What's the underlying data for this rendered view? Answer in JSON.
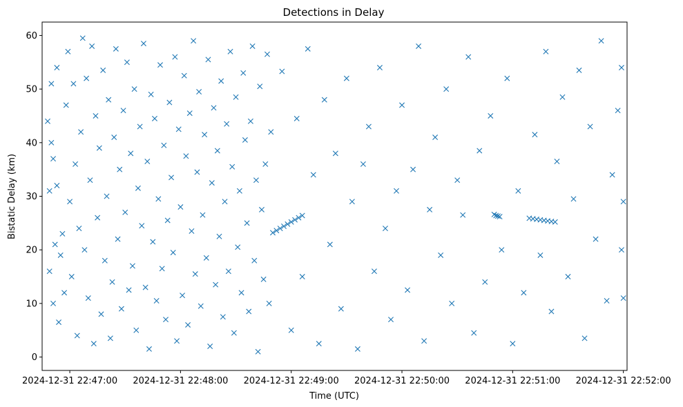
{
  "chart_data": {
    "type": "scatter",
    "title": "Detections in Delay",
    "xlabel": "Time (UTC)",
    "ylabel": "Bistatic Delay (km)",
    "x_axis_kind": "datetime",
    "xlim": [
      "2024-12-31 22:46:45",
      "2024-12-31 22:52:02"
    ],
    "ylim": [
      -2.5,
      62.5
    ],
    "x_ticks": [
      "2024-12-31 22:47:00",
      "2024-12-31 22:48:00",
      "2024-12-31 22:49:00",
      "2024-12-31 22:50:00",
      "2024-12-31 22:51:00",
      "2024-12-31 22:52:00"
    ],
    "y_ticks": [
      0,
      10,
      20,
      30,
      40,
      50,
      60
    ],
    "grid": false,
    "legend": "none",
    "marker": "x",
    "color": "#1f77b4",
    "series": [
      {
        "points": [
          [
            "2024-12-31 22:46:48",
            44
          ],
          [
            "2024-12-31 22:46:49",
            31
          ],
          [
            "2024-12-31 22:46:49",
            16
          ],
          [
            "2024-12-31 22:46:50",
            40
          ],
          [
            "2024-12-31 22:46:50",
            51
          ],
          [
            "2024-12-31 22:46:51",
            10
          ],
          [
            "2024-12-31 22:46:51",
            37
          ],
          [
            "2024-12-31 22:46:52",
            21
          ],
          [
            "2024-12-31 22:46:53",
            54
          ],
          [
            "2024-12-31 22:46:53",
            32
          ],
          [
            "2024-12-31 22:46:54",
            6.5
          ],
          [
            "2024-12-31 22:46:55",
            19
          ],
          [
            "2024-12-31 22:46:56",
            23
          ],
          [
            "2024-12-31 22:46:57",
            12
          ],
          [
            "2024-12-31 22:46:58",
            47
          ],
          [
            "2024-12-31 22:46:59",
            57
          ],
          [
            "2024-12-31 22:47:00",
            29
          ],
          [
            "2024-12-31 22:47:01",
            15
          ],
          [
            "2024-12-31 22:47:02",
            51
          ],
          [
            "2024-12-31 22:47:03",
            36
          ],
          [
            "2024-12-31 22:47:04",
            4
          ],
          [
            "2024-12-31 22:47:05",
            24
          ],
          [
            "2024-12-31 22:47:06",
            42
          ],
          [
            "2024-12-31 22:47:07",
            59.5
          ],
          [
            "2024-12-31 22:47:08",
            20
          ],
          [
            "2024-12-31 22:47:09",
            52
          ],
          [
            "2024-12-31 22:47:10",
            11
          ],
          [
            "2024-12-31 22:47:11",
            33
          ],
          [
            "2024-12-31 22:47:12",
            58
          ],
          [
            "2024-12-31 22:47:13",
            2.5
          ],
          [
            "2024-12-31 22:47:14",
            45
          ],
          [
            "2024-12-31 22:47:15",
            26
          ],
          [
            "2024-12-31 22:47:16",
            39
          ],
          [
            "2024-12-31 22:47:17",
            8
          ],
          [
            "2024-12-31 22:47:18",
            53.5
          ],
          [
            "2024-12-31 22:47:19",
            18
          ],
          [
            "2024-12-31 22:47:20",
            30
          ],
          [
            "2024-12-31 22:47:21",
            48
          ],
          [
            "2024-12-31 22:47:22",
            3.5
          ],
          [
            "2024-12-31 22:47:23",
            14
          ],
          [
            "2024-12-31 22:47:24",
            41
          ],
          [
            "2024-12-31 22:47:25",
            57.5
          ],
          [
            "2024-12-31 22:47:26",
            22
          ],
          [
            "2024-12-31 22:47:27",
            35
          ],
          [
            "2024-12-31 22:47:28",
            9
          ],
          [
            "2024-12-31 22:47:29",
            46
          ],
          [
            "2024-12-31 22:47:30",
            27
          ],
          [
            "2024-12-31 22:47:31",
            55
          ],
          [
            "2024-12-31 22:47:32",
            12.5
          ],
          [
            "2024-12-31 22:47:33",
            38
          ],
          [
            "2024-12-31 22:47:34",
            17
          ],
          [
            "2024-12-31 22:47:35",
            50
          ],
          [
            "2024-12-31 22:47:36",
            5
          ],
          [
            "2024-12-31 22:47:37",
            31.5
          ],
          [
            "2024-12-31 22:47:38",
            43
          ],
          [
            "2024-12-31 22:47:39",
            24.5
          ],
          [
            "2024-12-31 22:47:40",
            58.5
          ],
          [
            "2024-12-31 22:47:41",
            13
          ],
          [
            "2024-12-31 22:47:42",
            36.5
          ],
          [
            "2024-12-31 22:47:43",
            1.5
          ],
          [
            "2024-12-31 22:47:44",
            49
          ],
          [
            "2024-12-31 22:47:45",
            21.5
          ],
          [
            "2024-12-31 22:47:46",
            44.5
          ],
          [
            "2024-12-31 22:47:47",
            10.5
          ],
          [
            "2024-12-31 22:47:48",
            29.5
          ],
          [
            "2024-12-31 22:47:49",
            54.5
          ],
          [
            "2024-12-31 22:47:50",
            16.5
          ],
          [
            "2024-12-31 22:47:51",
            39.5
          ],
          [
            "2024-12-31 22:47:52",
            7
          ],
          [
            "2024-12-31 22:47:53",
            25.5
          ],
          [
            "2024-12-31 22:47:54",
            47.5
          ],
          [
            "2024-12-31 22:47:55",
            33.5
          ],
          [
            "2024-12-31 22:47:56",
            19.5
          ],
          [
            "2024-12-31 22:47:57",
            56
          ],
          [
            "2024-12-31 22:47:58",
            3
          ],
          [
            "2024-12-31 22:47:59",
            42.5
          ],
          [
            "2024-12-31 22:48:00",
            28
          ],
          [
            "2024-12-31 22:48:01",
            11.5
          ],
          [
            "2024-12-31 22:48:02",
            52.5
          ],
          [
            "2024-12-31 22:48:03",
            37.5
          ],
          [
            "2024-12-31 22:48:04",
            6
          ],
          [
            "2024-12-31 22:48:05",
            45.5
          ],
          [
            "2024-12-31 22:48:06",
            23.5
          ],
          [
            "2024-12-31 22:48:07",
            59
          ],
          [
            "2024-12-31 22:48:08",
            15.5
          ],
          [
            "2024-12-31 22:48:09",
            34.5
          ],
          [
            "2024-12-31 22:48:10",
            49.5
          ],
          [
            "2024-12-31 22:48:11",
            9.5
          ],
          [
            "2024-12-31 22:48:12",
            26.5
          ],
          [
            "2024-12-31 22:48:13",
            41.5
          ],
          [
            "2024-12-31 22:48:14",
            18.5
          ],
          [
            "2024-12-31 22:48:15",
            55.5
          ],
          [
            "2024-12-31 22:48:16",
            2
          ],
          [
            "2024-12-31 22:48:17",
            32.5
          ],
          [
            "2024-12-31 22:48:18",
            46.5
          ],
          [
            "2024-12-31 22:48:19",
            13.5
          ],
          [
            "2024-12-31 22:48:20",
            38.5
          ],
          [
            "2024-12-31 22:48:21",
            22.5
          ],
          [
            "2024-12-31 22:48:22",
            51.5
          ],
          [
            "2024-12-31 22:48:23",
            7.5
          ],
          [
            "2024-12-31 22:48:24",
            29
          ],
          [
            "2024-12-31 22:48:25",
            43.5
          ],
          [
            "2024-12-31 22:48:26",
            16
          ],
          [
            "2024-12-31 22:48:27",
            57
          ],
          [
            "2024-12-31 22:48:28",
            35.5
          ],
          [
            "2024-12-31 22:48:29",
            4.5
          ],
          [
            "2024-12-31 22:48:30",
            48.5
          ],
          [
            "2024-12-31 22:48:31",
            20.5
          ],
          [
            "2024-12-31 22:48:32",
            31
          ],
          [
            "2024-12-31 22:48:33",
            12
          ],
          [
            "2024-12-31 22:48:34",
            53
          ],
          [
            "2024-12-31 22:48:35",
            40.5
          ],
          [
            "2024-12-31 22:48:36",
            25
          ],
          [
            "2024-12-31 22:48:37",
            8.5
          ],
          [
            "2024-12-31 22:48:38",
            44
          ],
          [
            "2024-12-31 22:48:39",
            58
          ],
          [
            "2024-12-31 22:48:40",
            18
          ],
          [
            "2024-12-31 22:48:41",
            33
          ],
          [
            "2024-12-31 22:48:42",
            1
          ],
          [
            "2024-12-31 22:48:43",
            50.5
          ],
          [
            "2024-12-31 22:48:44",
            27.5
          ],
          [
            "2024-12-31 22:48:45",
            14.5
          ],
          [
            "2024-12-31 22:48:46",
            36
          ],
          [
            "2024-12-31 22:48:47",
            56.5
          ],
          [
            "2024-12-31 22:48:48",
            10
          ],
          [
            "2024-12-31 22:48:49",
            42
          ],
          [
            "2024-12-31 22:48:50",
            23.2
          ],
          [
            "2024-12-31 22:48:52",
            23.6
          ],
          [
            "2024-12-31 22:48:54",
            24
          ],
          [
            "2024-12-31 22:48:56",
            24.4
          ],
          [
            "2024-12-31 22:48:58",
            24.8
          ],
          [
            "2024-12-31 22:49:00",
            25.2
          ],
          [
            "2024-12-31 22:49:02",
            25.6
          ],
          [
            "2024-12-31 22:49:04",
            26
          ],
          [
            "2024-12-31 22:49:06",
            26.4
          ],
          [
            "2024-12-31 22:48:55",
            53.3
          ],
          [
            "2024-12-31 22:49:00",
            5
          ],
          [
            "2024-12-31 22:49:03",
            44.5
          ],
          [
            "2024-12-31 22:49:06",
            15
          ],
          [
            "2024-12-31 22:49:09",
            57.5
          ],
          [
            "2024-12-31 22:49:12",
            34
          ],
          [
            "2024-12-31 22:49:15",
            2.5
          ],
          [
            "2024-12-31 22:49:18",
            48
          ],
          [
            "2024-12-31 22:49:21",
            21
          ],
          [
            "2024-12-31 22:49:24",
            38
          ],
          [
            "2024-12-31 22:49:27",
            9
          ],
          [
            "2024-12-31 22:49:30",
            52
          ],
          [
            "2024-12-31 22:49:33",
            29
          ],
          [
            "2024-12-31 22:49:36",
            1.5
          ],
          [
            "2024-12-31 22:49:39",
            36
          ],
          [
            "2024-12-31 22:49:42",
            43
          ],
          [
            "2024-12-31 22:49:45",
            16
          ],
          [
            "2024-12-31 22:49:48",
            54
          ],
          [
            "2024-12-31 22:49:51",
            24
          ],
          [
            "2024-12-31 22:49:54",
            7
          ],
          [
            "2024-12-31 22:49:57",
            31
          ],
          [
            "2024-12-31 22:50:00",
            47
          ],
          [
            "2024-12-31 22:50:03",
            12.5
          ],
          [
            "2024-12-31 22:50:06",
            35
          ],
          [
            "2024-12-31 22:50:09",
            58
          ],
          [
            "2024-12-31 22:50:12",
            3
          ],
          [
            "2024-12-31 22:50:15",
            27.5
          ],
          [
            "2024-12-31 22:50:18",
            41
          ],
          [
            "2024-12-31 22:50:21",
            19
          ],
          [
            "2024-12-31 22:50:24",
            50
          ],
          [
            "2024-12-31 22:50:27",
            10
          ],
          [
            "2024-12-31 22:50:30",
            33
          ],
          [
            "2024-12-31 22:50:33",
            26.5
          ],
          [
            "2024-12-31 22:50:36",
            56
          ],
          [
            "2024-12-31 22:50:39",
            4.5
          ],
          [
            "2024-12-31 22:50:42",
            38.5
          ],
          [
            "2024-12-31 22:50:45",
            14
          ],
          [
            "2024-12-31 22:50:48",
            45
          ],
          [
            "2024-12-31 22:50:50",
            26.6
          ],
          [
            "2024-12-31 22:50:51",
            26.4
          ],
          [
            "2024-12-31 22:50:52",
            26.3
          ],
          [
            "2024-12-31 22:50:53",
            26.2
          ],
          [
            "2024-12-31 22:50:54",
            20
          ],
          [
            "2024-12-31 22:50:57",
            52
          ],
          [
            "2024-12-31 22:51:00",
            2.5
          ],
          [
            "2024-12-31 22:51:03",
            31
          ],
          [
            "2024-12-31 22:51:06",
            12
          ],
          [
            "2024-12-31 22:51:09",
            25.9
          ],
          [
            "2024-12-31 22:51:11",
            25.8
          ],
          [
            "2024-12-31 22:51:13",
            25.7
          ],
          [
            "2024-12-31 22:51:15",
            25.6
          ],
          [
            "2024-12-31 22:51:17",
            25.5
          ],
          [
            "2024-12-31 22:51:19",
            25.4
          ],
          [
            "2024-12-31 22:51:21",
            25.3
          ],
          [
            "2024-12-31 22:51:23",
            25.2
          ],
          [
            "2024-12-31 22:51:12",
            41.5
          ],
          [
            "2024-12-31 22:51:15",
            19
          ],
          [
            "2024-12-31 22:51:18",
            57
          ],
          [
            "2024-12-31 22:51:21",
            8.5
          ],
          [
            "2024-12-31 22:51:24",
            36.5
          ],
          [
            "2024-12-31 22:51:27",
            48.5
          ],
          [
            "2024-12-31 22:51:30",
            15
          ],
          [
            "2024-12-31 22:51:33",
            29.5
          ],
          [
            "2024-12-31 22:51:36",
            53.5
          ],
          [
            "2024-12-31 22:51:39",
            3.5
          ],
          [
            "2024-12-31 22:51:42",
            43
          ],
          [
            "2024-12-31 22:51:45",
            22
          ],
          [
            "2024-12-31 22:51:48",
            59
          ],
          [
            "2024-12-31 22:51:51",
            10.5
          ],
          [
            "2024-12-31 22:51:54",
            34
          ],
          [
            "2024-12-31 22:51:57",
            46
          ],
          [
            "2024-12-31 22:51:59",
            20
          ],
          [
            "2024-12-31 22:51:59",
            54
          ],
          [
            "2024-12-31 22:52:00",
            29
          ],
          [
            "2024-12-31 22:52:00",
            11
          ]
        ]
      }
    ]
  }
}
